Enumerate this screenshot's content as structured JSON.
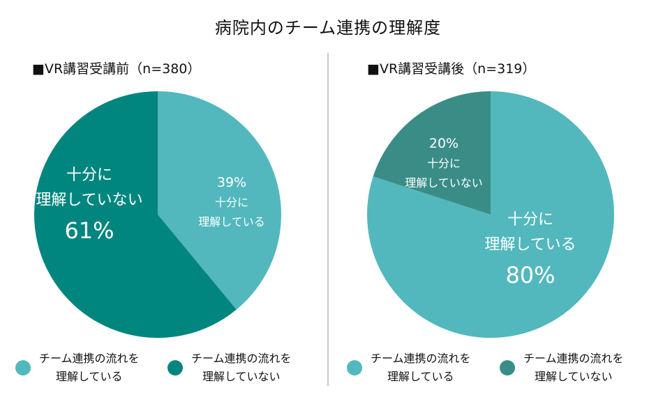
{
  "title": "病院内のチーム連携の理解度",
  "colors": {
    "understands": "#52b8bd",
    "not_left": "#00867f",
    "not_right": "#3a8d87"
  },
  "chart_data": [
    {
      "type": "pie",
      "title": "■VR講習受講前（n=380）",
      "slices": [
        {
          "name": "チーム連携の流れを理解している",
          "value": 39,
          "pct_label": "39%",
          "label_lines": [
            "十分に",
            "理解している"
          ]
        },
        {
          "name": "チーム連携の流れを理解していない",
          "value": 61,
          "pct_label": "61%",
          "label_lines": [
            "十分に",
            "理解していない"
          ]
        }
      ],
      "legend": [
        {
          "text": "チーム連携の流れを\n理解している"
        },
        {
          "text": "チーム連携の流れを\n理解していない"
        }
      ]
    },
    {
      "type": "pie",
      "title": "■VR講習受講後（n=319）",
      "slices": [
        {
          "name": "チーム連携の流れを理解している",
          "value": 80,
          "pct_label": "80%",
          "label_lines": [
            "十分に",
            "理解している"
          ]
        },
        {
          "name": "チーム連携の流れを理解していない",
          "value": 20,
          "pct_label": "20%",
          "label_lines": [
            "十分に",
            "理解していない"
          ]
        }
      ],
      "legend": [
        {
          "text": "チーム連携の流れを\n理解している"
        },
        {
          "text": "チーム連携の流れを\n理解していない"
        }
      ]
    }
  ]
}
